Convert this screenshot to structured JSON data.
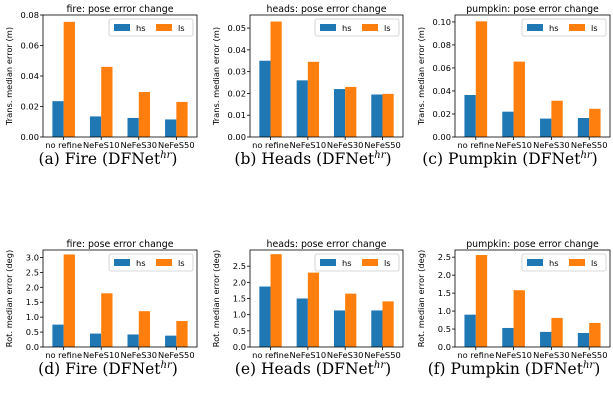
{
  "colors": {
    "hs": "#1f77b4",
    "ls": "#ff7f0e"
  },
  "charts": [
    {
      "type": "bar",
      "title": "fire: pose error change",
      "ylabel": "Trans. median error (m)",
      "categories": [
        "no refine",
        "NeFeS10",
        "NeFeS30",
        "NeFeS50"
      ],
      "ylim": [
        0,
        0.08
      ],
      "yticks": [
        "0.00",
        "0.02",
        "0.04",
        "0.06",
        "0.08"
      ],
      "ytick_values": [
        0,
        0.02,
        0.04,
        0.06,
        0.08
      ],
      "series": [
        {
          "name": "hs",
          "values": [
            0.0235,
            0.0135,
            0.0125,
            0.0115
          ]
        },
        {
          "name": "ls",
          "values": [
            0.0755,
            0.046,
            0.0295,
            0.023
          ]
        }
      ],
      "legend": "top-right",
      "caption_label": "(a) Fire (DFNet",
      "caption_sup": "hr",
      "caption_end": ")"
    },
    {
      "type": "bar",
      "title": "heads: pose error change",
      "ylabel": "Trans. median error (m)",
      "categories": [
        "no refine",
        "NeFeS10",
        "NeFeS30",
        "NeFeS50"
      ],
      "ylim": [
        0,
        0.056
      ],
      "yticks": [
        "0.00",
        "0.01",
        "0.02",
        "0.03",
        "0.04",
        "0.05"
      ],
      "ytick_values": [
        0,
        0.01,
        0.02,
        0.03,
        0.04,
        0.05
      ],
      "series": [
        {
          "name": "hs",
          "values": [
            0.035,
            0.026,
            0.022,
            0.0195
          ]
        },
        {
          "name": "ls",
          "values": [
            0.053,
            0.0345,
            0.023,
            0.0198
          ]
        }
      ],
      "legend": "top-right",
      "caption_label": "(b) Heads (DFNet",
      "caption_sup": "hr",
      "caption_end": ")"
    },
    {
      "type": "bar",
      "title": "pumpkin: pose error change",
      "ylabel": "Trans. median error (m)",
      "categories": [
        "no refine",
        "NeFeS10",
        "NeFeS30",
        "NeFeS50"
      ],
      "ylim": [
        0,
        0.106
      ],
      "yticks": [
        "0.00",
        "0.02",
        "0.04",
        "0.06",
        "0.08",
        "0.10"
      ],
      "ytick_values": [
        0,
        0.02,
        0.04,
        0.06,
        0.08,
        0.1
      ],
      "series": [
        {
          "name": "hs",
          "values": [
            0.0365,
            0.022,
            0.016,
            0.0165
          ]
        },
        {
          "name": "ls",
          "values": [
            0.1005,
            0.0655,
            0.0315,
            0.0245
          ]
        }
      ],
      "legend": "top-right",
      "caption_label": "(c) Pumpkin (DFNet",
      "caption_sup": "hr",
      "caption_end": ")"
    },
    {
      "type": "bar",
      "title": "fire: pose error change",
      "ylabel": "Rot. median error (deg)",
      "categories": [
        "no refine",
        "NeFeS10",
        "NeFeS30",
        "NeFeS50"
      ],
      "ylim": [
        0,
        3.25
      ],
      "yticks": [
        "0.0",
        "0.5",
        "1.0",
        "1.5",
        "2.0",
        "2.5",
        "3.0"
      ],
      "ytick_values": [
        0,
        0.5,
        1.0,
        1.5,
        2.0,
        2.5,
        3.0
      ],
      "series": [
        {
          "name": "hs",
          "values": [
            0.75,
            0.45,
            0.42,
            0.38
          ]
        },
        {
          "name": "ls",
          "values": [
            3.1,
            1.8,
            1.2,
            0.87
          ]
        }
      ],
      "legend": "top-right",
      "caption_label": "(d) Fire (DFNet",
      "caption_sup": "hr",
      "caption_end": ")"
    },
    {
      "type": "bar",
      "title": "heads: pose error change",
      "ylabel": "Rot. median error (deg)",
      "categories": [
        "no refine",
        "NeFeS10",
        "NeFeS30",
        "NeFeS50"
      ],
      "ylim": [
        0,
        3.0
      ],
      "yticks": [
        "0.0",
        "0.5",
        "1.0",
        "1.5",
        "2.0",
        "2.5"
      ],
      "ytick_values": [
        0,
        0.5,
        1.0,
        1.5,
        2.0,
        2.5
      ],
      "series": [
        {
          "name": "hs",
          "values": [
            1.87,
            1.5,
            1.13,
            1.13
          ]
        },
        {
          "name": "ls",
          "values": [
            2.87,
            2.3,
            1.65,
            1.41
          ]
        }
      ],
      "legend": "top-right",
      "caption_label": "(e) Heads (DFNet",
      "caption_sup": "hr",
      "caption_end": ")"
    },
    {
      "type": "bar",
      "title": "pumpkin: pose error change",
      "ylabel": "Rot. median error (deg)",
      "categories": [
        "no refine",
        "NeFeS10",
        "NeFeS30",
        "NeFeS50"
      ],
      "ylim": [
        0,
        2.7
      ],
      "yticks": [
        "0.0",
        "0.5",
        "1.0",
        "1.5",
        "2.0",
        "2.5"
      ],
      "ytick_values": [
        0,
        0.5,
        1.0,
        1.5,
        2.0,
        2.5
      ],
      "series": [
        {
          "name": "hs",
          "values": [
            0.9,
            0.53,
            0.42,
            0.39
          ]
        },
        {
          "name": "ls",
          "values": [
            2.56,
            1.58,
            0.81,
            0.67
          ]
        }
      ],
      "legend": "top-right",
      "caption_label": "(f) Pumpkin (DFNet",
      "caption_sup": "hr",
      "caption_end": ")"
    }
  ]
}
